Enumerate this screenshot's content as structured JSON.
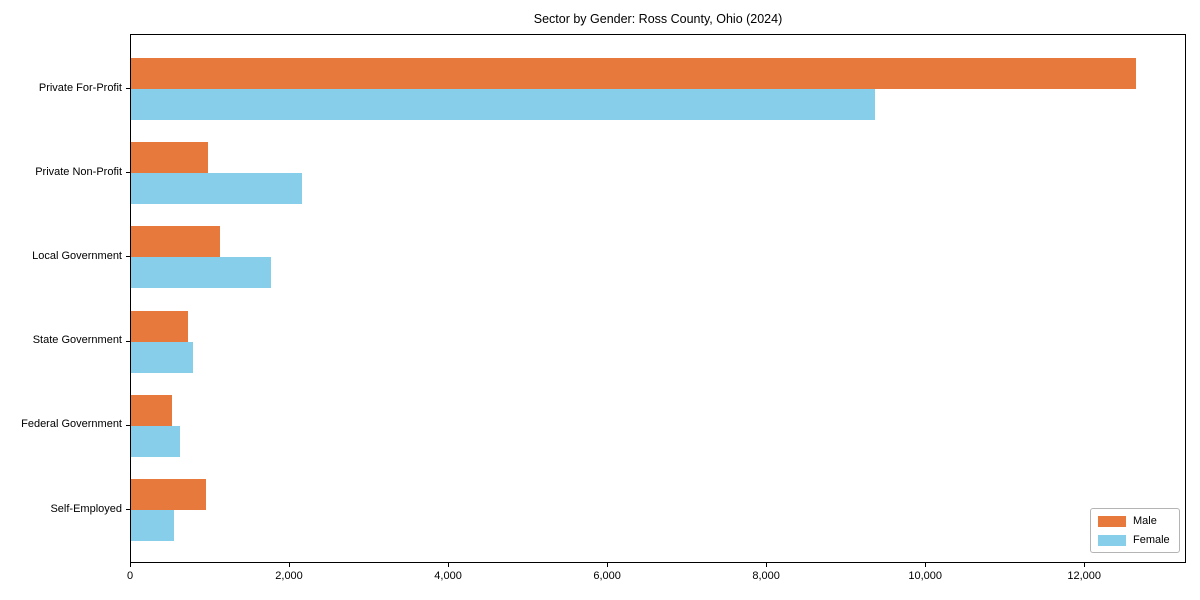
{
  "figure": {
    "kind": "matplotlib-style horizontal grouped bar chart"
  },
  "chart_data": {
    "type": "bar",
    "orientation": "horizontal",
    "title": "Sector by Gender: Ross County, Ohio (2024)",
    "xlabel": "",
    "ylabel": "",
    "grid": false,
    "xlim": [
      0,
      13280
    ],
    "categories": [
      "Private For-Profit",
      "Private Non-Profit",
      "Local Government",
      "State Government",
      "Federal Government",
      "Self-Employed"
    ],
    "series": [
      {
        "name": "Male",
        "color": "#e8793d",
        "values": [
          12640,
          970,
          1120,
          720,
          520,
          940
        ]
      },
      {
        "name": "Female",
        "color": "#87ceeb",
        "values": [
          9360,
          2150,
          1760,
          780,
          620,
          540
        ]
      }
    ],
    "xticks": [
      {
        "value": 0,
        "label": "0"
      },
      {
        "value": 2000,
        "label": "2,000"
      },
      {
        "value": 4000,
        "label": "4,000"
      },
      {
        "value": 6000,
        "label": "6,000"
      },
      {
        "value": 8000,
        "label": "8,000"
      },
      {
        "value": 10000,
        "label": "10,000"
      },
      {
        "value": 12000,
        "label": "12,000"
      }
    ],
    "legend": {
      "position": "lower right",
      "entries": [
        "Male",
        "Female"
      ]
    }
  }
}
